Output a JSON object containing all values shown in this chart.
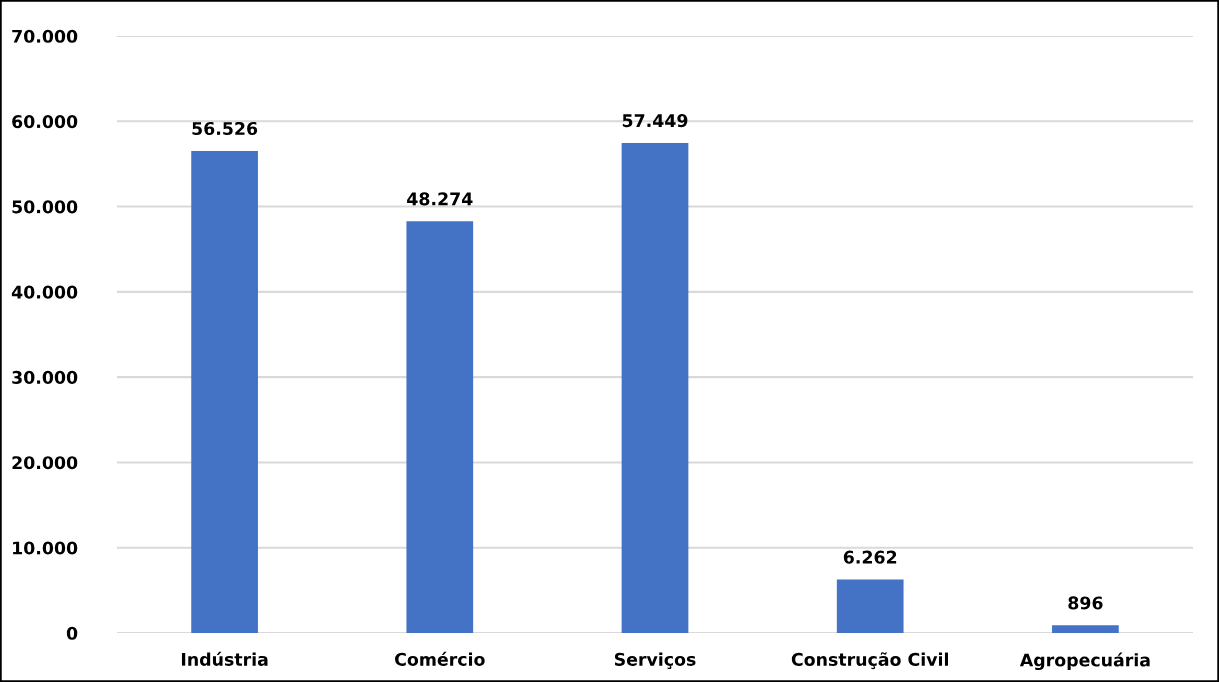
{
  "chart_data": {
    "type": "bar",
    "categories": [
      "Indústria",
      "Comércio",
      "Serviços",
      "Construção Civil",
      "Agropecuária"
    ],
    "values": [
      56526,
      48274,
      57449,
      6262,
      896
    ],
    "value_labels": [
      "56.526",
      "48.274",
      "57.449",
      "6.262",
      "896"
    ],
    "color": "#4472c4",
    "ylim": [
      0,
      70000
    ],
    "yticks": [
      {
        "value": 0,
        "label": "0"
      },
      {
        "value": 10000,
        "label": "10.000"
      },
      {
        "value": 20000,
        "label": "20.000"
      },
      {
        "value": 30000,
        "label": "30.000"
      },
      {
        "value": 40000,
        "label": "40.000"
      },
      {
        "value": 50000,
        "label": "50.000"
      },
      {
        "value": 60000,
        "label": "60.000"
      },
      {
        "value": 70000,
        "label": "70.000"
      }
    ],
    "grid": "y"
  }
}
